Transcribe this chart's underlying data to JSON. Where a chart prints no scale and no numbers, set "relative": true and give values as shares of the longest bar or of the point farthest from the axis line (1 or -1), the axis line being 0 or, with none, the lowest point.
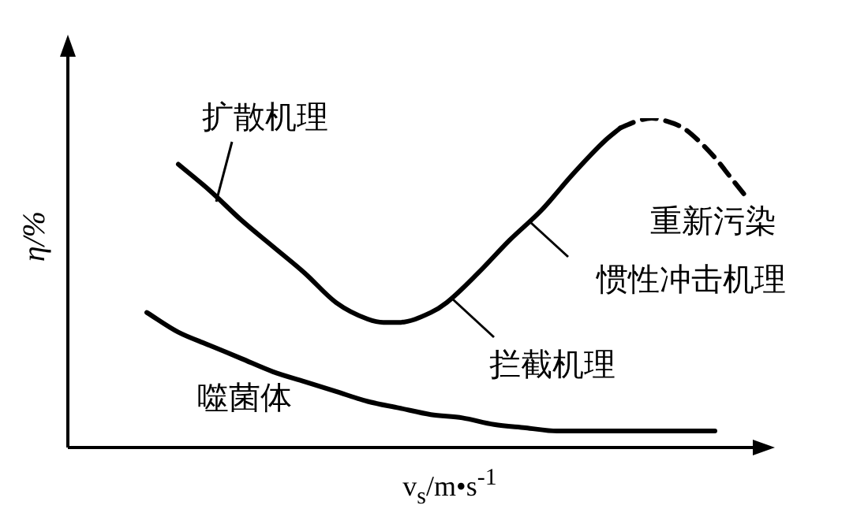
{
  "chart_data": {
    "type": "line",
    "relative": true,
    "xlabel": "v$_{s}$/m•s$^{-1}$",
    "ylabel": "η/%",
    "categories": [
      null,
      null,
      null,
      null,
      null,
      null,
      null,
      null,
      null,
      null,
      null,
      null,
      null,
      null,
      null,
      null,
      null,
      null,
      null,
      null,
      null,
      null,
      null,
      null,
      null,
      null,
      null,
      null,
      null,
      null,
      null,
      null,
      null,
      null,
      null,
      null,
      null,
      null,
      null,
      null,
      null,
      null,
      null,
      null,
      null
    ],
    "series": [
      {
        "color": "#000000",
        "line_style": "solid",
        "values": [
          null,
          null,
          null,
          null,
          null,
          null,
          null,
          0.86,
          null,
          0.78,
          null,
          0.69,
          null,
          0.61,
          null,
          0.53,
          null,
          0.44,
          null,
          0.39,
          0.38,
          0.38,
          null,
          0.41,
          0.44,
          null,
          0.53,
          null,
          0.63,
          null,
          0.72,
          null,
          0.83,
          null,
          0.93,
          0.97,
          null,
          null,
          null,
          null,
          null,
          null,
          null,
          null,
          null
        ]
      },
      {
        "color": "#000000",
        "line_style": "dashed",
        "values": [
          null,
          null,
          null,
          null,
          null,
          null,
          null,
          null,
          null,
          null,
          null,
          null,
          null,
          null,
          null,
          null,
          null,
          null,
          null,
          null,
          null,
          null,
          null,
          null,
          null,
          null,
          null,
          null,
          null,
          null,
          null,
          null,
          null,
          null,
          null,
          0.97,
          0.99,
          1,
          0.99,
          0.97,
          0.93,
          0.88,
          0.82,
          0.76,
          null
        ]
      },
      {
        "name": "噬菌体",
        "color": "#000000",
        "line_style": "solid",
        "values": [
          null,
          null,
          null,
          null,
          null,
          0.41,
          null,
          0.35,
          null,
          0.31,
          null,
          0.27,
          null,
          0.23,
          null,
          0.2,
          null,
          0.17,
          null,
          0.14,
          null,
          0.12,
          null,
          0.1,
          null,
          0.09,
          null,
          0.07,
          null,
          0.06,
          null,
          0.05,
          null,
          0.05,
          null,
          0.05,
          null,
          0.05,
          null,
          0.05,
          null,
          0.05,
          null,
          null,
          null
        ]
      }
    ],
    "annotations": [
      "扩散机理",
      "惯性冲击机理",
      "拦截机理",
      "重新污染"
    ],
    "legend": false,
    "marker": "none"
  }
}
